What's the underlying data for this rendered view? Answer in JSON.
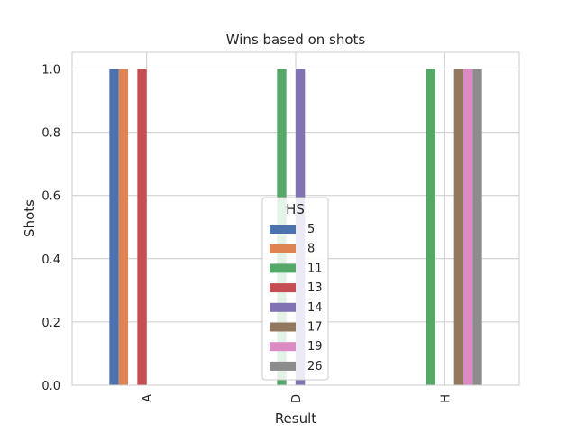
{
  "chart_data": {
    "type": "bar",
    "title": "Wins based on shots",
    "xlabel": "Result",
    "ylabel": "Shots",
    "categories": [
      "A",
      "D",
      "H"
    ],
    "ylim": [
      0,
      1.0
    ],
    "yticks": [
      "0.0",
      "0.2",
      "0.4",
      "0.6",
      "0.8",
      "1.0"
    ],
    "grid": true,
    "legend": {
      "title": "HS",
      "placement": "center-bottom"
    },
    "series": [
      {
        "name": "5",
        "color": "#4c72b0",
        "values": [
          1,
          null,
          null
        ]
      },
      {
        "name": "8",
        "color": "#dd8452",
        "values": [
          1,
          null,
          null
        ]
      },
      {
        "name": "11",
        "color": "#55a868",
        "values": [
          null,
          1,
          1
        ]
      },
      {
        "name": "13",
        "color": "#c44e52",
        "values": [
          1,
          null,
          null
        ]
      },
      {
        "name": "14",
        "color": "#8172b3",
        "values": [
          null,
          1,
          null
        ]
      },
      {
        "name": "17",
        "color": "#937860",
        "values": [
          null,
          null,
          1
        ]
      },
      {
        "name": "19",
        "color": "#da8bc3",
        "values": [
          null,
          null,
          1
        ]
      },
      {
        "name": "26",
        "color": "#8c8c8c",
        "values": [
          null,
          null,
          1
        ]
      }
    ]
  }
}
